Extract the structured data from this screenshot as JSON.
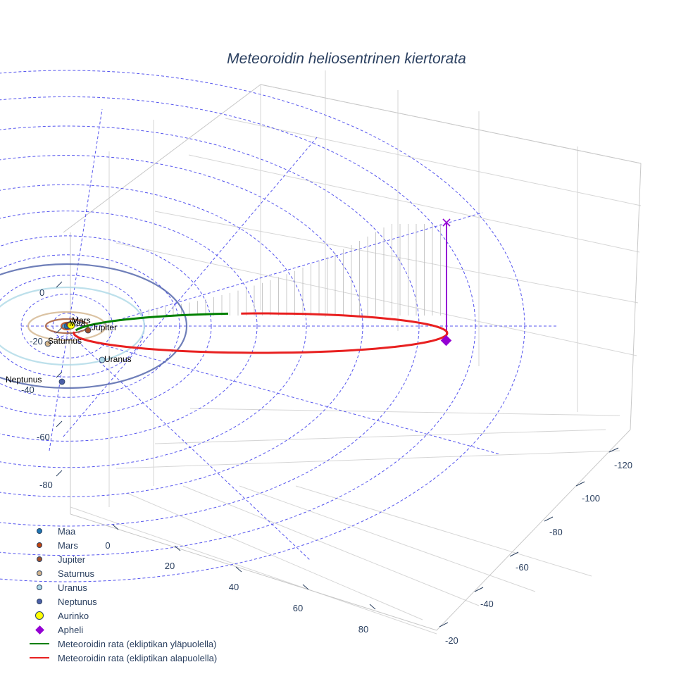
{
  "chart_data": {
    "type": "scatter3d",
    "title": "Meteoroidin heliosentrinen kiertorata",
    "axes": {
      "x": {
        "ticks": [
          "-120",
          "-100",
          "-80",
          "-60",
          "-40",
          "-20"
        ]
      },
      "y": {
        "ticks": [
          "0",
          "20",
          "40",
          "60",
          "80"
        ]
      },
      "z": {
        "ticks": [
          "0",
          "-20",
          "-40",
          "-60",
          "-80"
        ]
      }
    },
    "planets": [
      {
        "name": "Maa",
        "orbit_radius_au": 1.0,
        "color": "#1f77b4"
      },
      {
        "name": "Mars",
        "orbit_radius_au": 1.52,
        "color": "#c1440e"
      },
      {
        "name": "Jupiter",
        "orbit_radius_au": 5.2,
        "color": "#a0522d"
      },
      {
        "name": "Saturnus",
        "orbit_radius_au": 9.5,
        "color": "#d2b48c"
      },
      {
        "name": "Uranus",
        "orbit_radius_au": 19.2,
        "color": "#add8e6"
      },
      {
        "name": "Neptunus",
        "orbit_radius_au": 30.1,
        "color": "#4b5fa8"
      }
    ],
    "sun": {
      "name": "Aurinko",
      "color": "#ffff00"
    },
    "aphelion": {
      "name": "Apheli",
      "color": "#9400d3"
    },
    "series": [
      {
        "name": "Meteoroidin rata (ekliptikan yläpuolella)",
        "color": "#008000"
      },
      {
        "name": "Meteoroidin rata (ekliptikan alapuolella)",
        "color": "#e82020"
      }
    ],
    "grid": true,
    "legend_position": "bottom-left"
  }
}
